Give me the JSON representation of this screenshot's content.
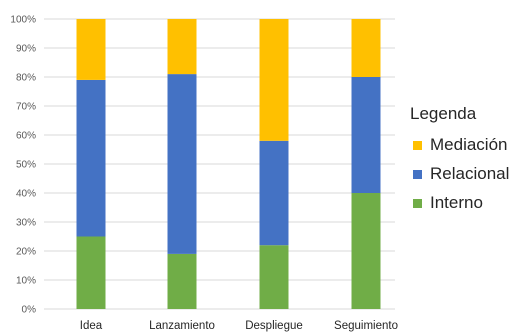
{
  "chart_data": {
    "type": "bar",
    "stacked": true,
    "categories": [
      "Idea",
      "Lanzamiento",
      "Despliegue",
      "Seguimiento"
    ],
    "series": [
      {
        "name": "Interno",
        "color": "#70ad47",
        "values": [
          25,
          19,
          22,
          40
        ]
      },
      {
        "name": "Relacional",
        "color": "#4472c4",
        "values": [
          54,
          62,
          36,
          40
        ]
      },
      {
        "name": "Mediación",
        "color": "#ffc000",
        "values": [
          21,
          19,
          42,
          20
        ]
      }
    ],
    "yticks": [
      "0%",
      "10%",
      "20%",
      "30%",
      "40%",
      "50%",
      "60%",
      "70%",
      "80%",
      "90%",
      "100%"
    ],
    "ylim": [
      0,
      100
    ],
    "grid": true,
    "legend": {
      "title": "Legenda",
      "placement": "right",
      "order": [
        "Mediación",
        "Relacional",
        "Interno"
      ]
    }
  }
}
